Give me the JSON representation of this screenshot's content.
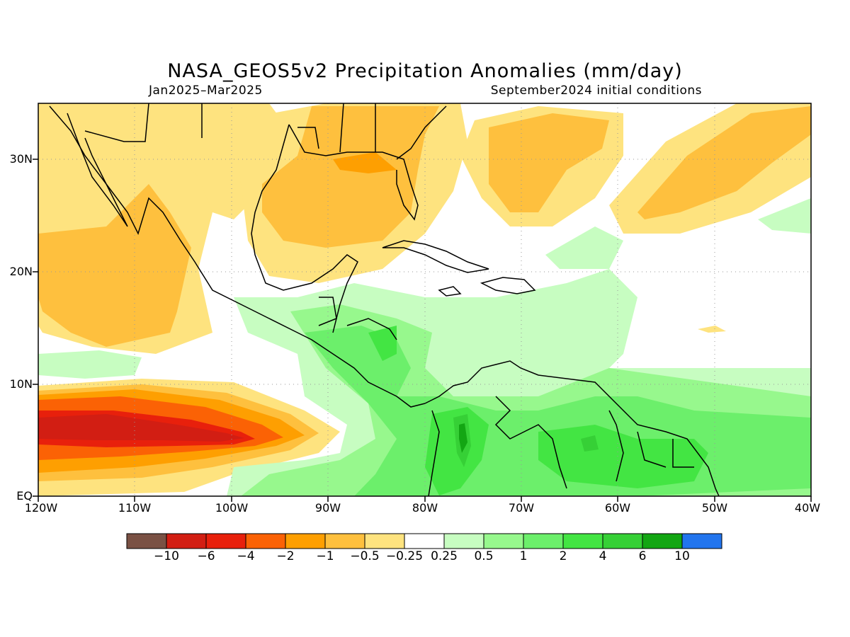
{
  "title": "NASA_GEOS5v2 Precipitation Anomalies (mm/day)",
  "period": "Jan2025–Mar2025",
  "init": "September2024 initial conditions",
  "y_ticks": [
    "30N",
    "20N",
    "10N",
    "EQ"
  ],
  "x_ticks": [
    "120W",
    "110W",
    "100W",
    "90W",
    "80W",
    "70W",
    "60W",
    "50W",
    "40W"
  ],
  "colorbar": {
    "colors": [
      "#7a5144",
      "#d21e13",
      "#e8200c",
      "#fb6205",
      "#fe9f01",
      "#fec03e",
      "#fee37f",
      "#ffffff",
      "#c7fdc1",
      "#97f88d",
      "#6cef6b",
      "#43e543",
      "#36d036",
      "#13a613",
      "#2275ee"
    ],
    "labels": [
      "−10",
      "−6",
      "−4",
      "−2",
      "−1",
      "−0.5",
      "−0.25",
      "0.25",
      "0.5",
      "1",
      "2",
      "4",
      "6",
      "10"
    ]
  },
  "legend_colors": {
    "dry_light": "#fee37f",
    "dry_mid": "#fec03e",
    "dry_strong": "#fe9f01",
    "dry_vstrong": "#fb6205",
    "dry_extreme": "#e8200c",
    "dry_core": "#d21e13",
    "wet_light": "#c7fdc1",
    "wet_mid": "#97f88d",
    "wet_strong": "#6cef6b",
    "wet_vstrong": "#43e543",
    "wet_core": "#36d036",
    "wet_extreme": "#13a613"
  }
}
